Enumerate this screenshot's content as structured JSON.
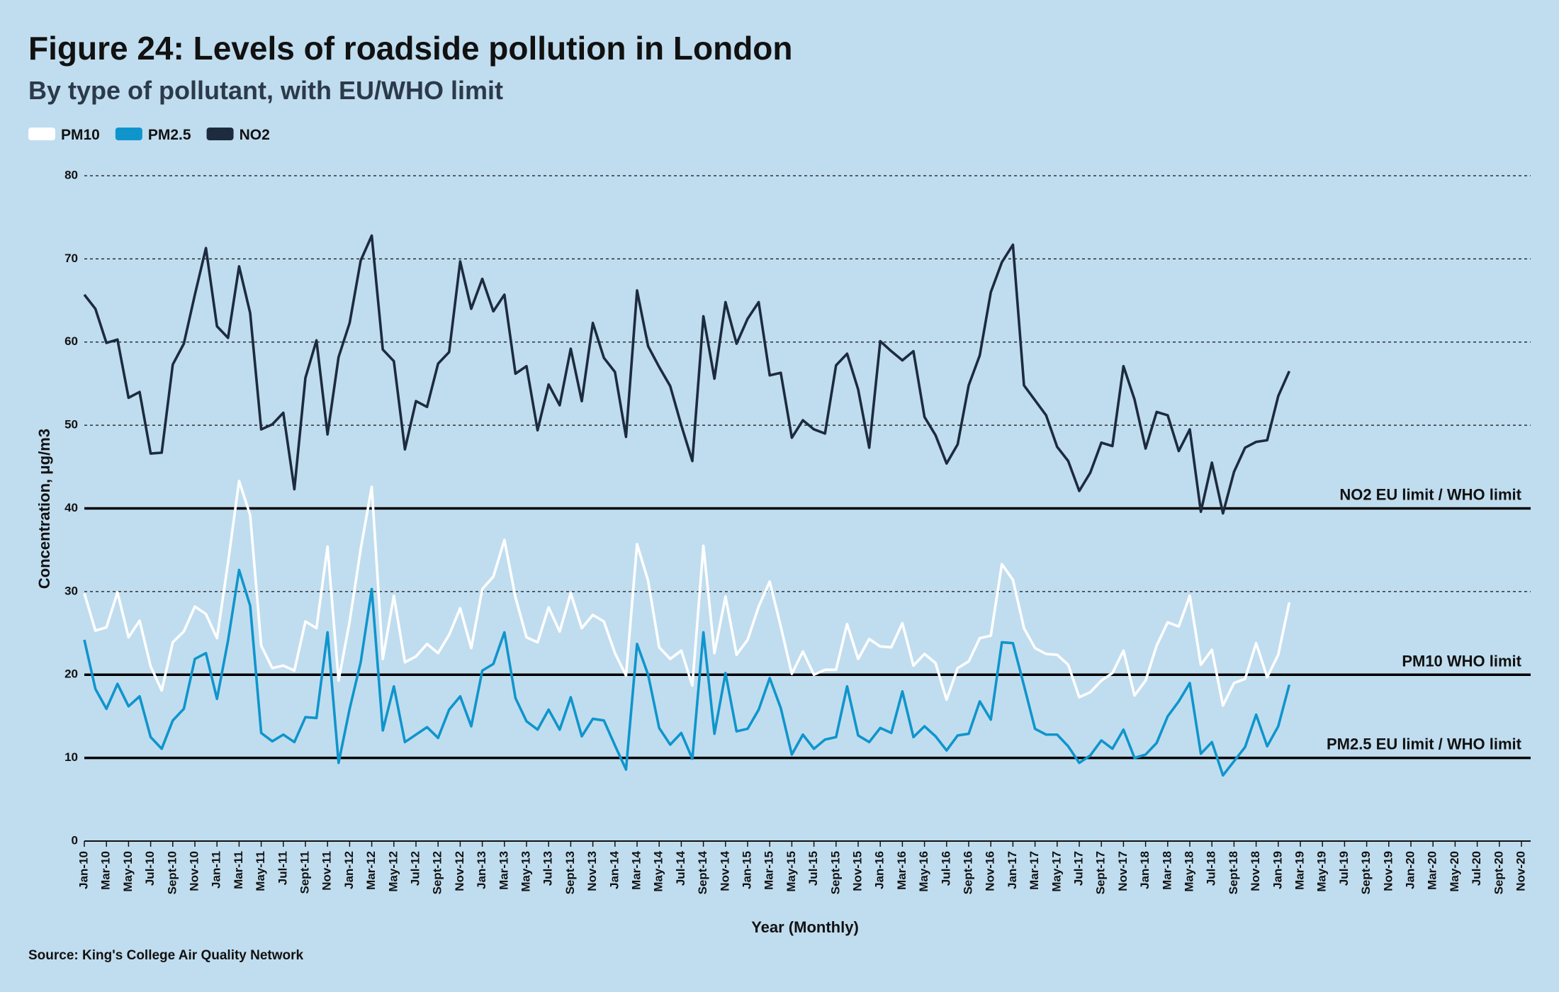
{
  "chart_data": {
    "type": "line",
    "title": "Figure 24: Levels of roadside pollution in London",
    "subtitle": "By type of pollutant, with EU/WHO limit",
    "y_label": "Concentration, μg/m3",
    "x_label": "Year (Monthly)",
    "source": "Source: King's College Air Quality Network",
    "ylim": [
      0,
      80
    ],
    "yticks": [
      0,
      10,
      20,
      30,
      40,
      50,
      60,
      70,
      80
    ],
    "grid": true,
    "legend": "top-left",
    "reference_lines": [
      {
        "value": 40,
        "label": "NO2 EU limit / WHO limit"
      },
      {
        "value": 20,
        "label": "PM10 WHO limit"
      },
      {
        "value": 10,
        "label": "PM2.5 EU limit / WHO limit"
      }
    ],
    "categories": [
      "Jan-10",
      null,
      "Mar-10",
      null,
      "May-10",
      null,
      "Jul-10",
      null,
      "Sept-10",
      null,
      "Nov-10",
      null,
      "Jan-11",
      null,
      "Mar-11",
      null,
      "May-11",
      null,
      "Jul-11",
      null,
      "Sept-11",
      null,
      "Nov-11",
      null,
      "Jan-12",
      null,
      "Mar-12",
      null,
      "May-12",
      null,
      "Jul-12",
      null,
      "Sept-12",
      null,
      "Nov-12",
      null,
      "Jan-13",
      null,
      "Mar-13",
      null,
      "May-13",
      null,
      "Jul-13",
      null,
      "Sept-13",
      null,
      "Nov-13",
      null,
      "Jan-14",
      null,
      "Mar-14",
      null,
      "May-14",
      null,
      "Jul-14",
      null,
      "Sept-14",
      null,
      "Nov-14",
      null,
      "Jan-15",
      null,
      "Mar-15",
      null,
      "May-15",
      null,
      "Jul-15",
      null,
      "Sept-15",
      null,
      "Nov-15",
      null,
      "Jan-16",
      null,
      "Mar-16",
      null,
      "May-16",
      null,
      "Jul-16",
      null,
      "Sept-16",
      null,
      "Nov-16",
      null,
      "Jan-17",
      null,
      "Mar-17",
      null,
      "May-17",
      null,
      "Jul-17",
      null,
      "Sept-17",
      null,
      "Nov-17",
      null,
      "Jan-18",
      null,
      "Mar-18",
      null,
      "May-18",
      null,
      "Jul-18",
      null,
      "Sept-18",
      null,
      "Nov-18",
      null,
      "Jan-19",
      null,
      "Mar-19",
      null,
      "May-19",
      null,
      "Jul-19",
      null,
      "Sept-19",
      null,
      "Nov-19",
      null,
      "Jan-20",
      null,
      "Mar-20",
      null,
      "May-20",
      null,
      "Jul-20",
      null,
      "Sept-20",
      null,
      "Nov-20"
    ],
    "series": [
      {
        "name": "PM10",
        "color": "#ffffff",
        "values": [
          29.8,
          25.3,
          25.7,
          29.9,
          24.5,
          26.5,
          21,
          18.1,
          23.9,
          25.2,
          28.2,
          27.3,
          24.4,
          33.5,
          43.3,
          39.2,
          23.5,
          20.8,
          21.1,
          20.5,
          26.4,
          25.6,
          35.4,
          19.3,
          26.4,
          35.1,
          42.6,
          21.9,
          29.5,
          21.5,
          22.2,
          23.7,
          22.6,
          24.8,
          28,
          23.2,
          30.3,
          31.8,
          36.2,
          29.3,
          24.5,
          23.9,
          28.1,
          25.2,
          29.8,
          25.6,
          27.2,
          26.4,
          22.6,
          19.9,
          35.7,
          31.3,
          23.3,
          21.9,
          22.9,
          18.7,
          35.5,
          22.6,
          29.4,
          22.4,
          24.2,
          28.2,
          31.2,
          25.8,
          20.1,
          22.8,
          20,
          20.6,
          20.6,
          26.1,
          21.9,
          24.3,
          23.4,
          23.3,
          26.2,
          21.1,
          22.5,
          21.4,
          17,
          20.8,
          21.6,
          24.4,
          24.7,
          33.3,
          31.4,
          25.6,
          23.2,
          22.5,
          22.4,
          21.2,
          17.3,
          17.9,
          19.3,
          20.2,
          22.9,
          17.5,
          19.3,
          23.5,
          26.3,
          25.8,
          29.5,
          21.2,
          23,
          16.3,
          19,
          19.5,
          23.8,
          19.7,
          22.4,
          28.7,
          null,
          null,
          null,
          null,
          null,
          null,
          null,
          null,
          null,
          null,
          null,
          null,
          null,
          null,
          null,
          null,
          null,
          null,
          null,
          null,
          null
        ]
      },
      {
        "name": "PM2.5",
        "color": "#0f95cc",
        "values": [
          24.2,
          18.3,
          15.9,
          18.9,
          16.2,
          17.4,
          12.5,
          11.1,
          14.5,
          15.9,
          21.9,
          22.6,
          17.1,
          24.1,
          32.6,
          28.3,
          13,
          12,
          12.8,
          11.9,
          14.9,
          14.8,
          25.1,
          9.4,
          15.9,
          21.5,
          30.3,
          13.3,
          18.6,
          11.9,
          12.8,
          13.7,
          12.4,
          15.8,
          17.4,
          13.8,
          20.5,
          21.3,
          25.1,
          17.2,
          14.4,
          13.4,
          15.8,
          13.4,
          17.3,
          12.6,
          14.7,
          14.5,
          11.5,
          8.6,
          23.7,
          20,
          13.6,
          11.6,
          13,
          9.9,
          25.1,
          12.9,
          20.2,
          13.2,
          13.5,
          15.8,
          19.6,
          16,
          10.4,
          12.8,
          11.1,
          12.2,
          12.5,
          18.6,
          12.7,
          11.9,
          13.6,
          13,
          18,
          12.5,
          13.8,
          12.6,
          10.9,
          12.7,
          12.9,
          16.8,
          14.6,
          23.9,
          23.8,
          18.7,
          13.5,
          12.8,
          12.8,
          11.4,
          9.4,
          10.3,
          12.1,
          11.1,
          13.4,
          10,
          10.4,
          11.8,
          15,
          16.8,
          19,
          10.5,
          11.9,
          7.9,
          9.6,
          11.3,
          15.2,
          11.4,
          13.8,
          18.8,
          null,
          null,
          null,
          null,
          null,
          null,
          null,
          null,
          null,
          null,
          null,
          null,
          null,
          null,
          null,
          null,
          null,
          null,
          null,
          null,
          null
        ]
      },
      {
        "name": "NO2",
        "color": "#1d2b3e",
        "values": [
          65.7,
          64,
          59.9,
          60.3,
          53.3,
          54,
          46.6,
          46.7,
          57.3,
          59.8,
          65.7,
          71.3,
          61.9,
          60.5,
          69.1,
          63.5,
          49.5,
          50.1,
          51.5,
          42.3,
          55.7,
          60.2,
          48.9,
          58.2,
          62.3,
          69.8,
          72.8,
          59.1,
          57.7,
          47.1,
          52.9,
          52.2,
          57.4,
          58.8,
          69.7,
          64,
          67.6,
          63.7,
          65.7,
          56.2,
          57.1,
          49.4,
          54.9,
          52.4,
          59.2,
          52.9,
          62.3,
          58.1,
          56.4,
          48.6,
          66.2,
          59.5,
          57,
          54.7,
          50,
          45.7,
          63.1,
          55.6,
          64.8,
          59.8,
          62.8,
          64.8,
          56,
          56.3,
          48.5,
          50.6,
          49.5,
          49,
          57.2,
          58.6,
          54.3,
          47.3,
          60.1,
          58.9,
          57.8,
          58.9,
          51,
          48.8,
          45.4,
          47.7,
          54.8,
          58.4,
          66,
          69.6,
          71.7,
          54.8,
          53,
          51.2,
          47.4,
          45.7,
          42.1,
          44.3,
          47.9,
          47.5,
          57.1,
          53.1,
          47.2,
          51.6,
          51.2,
          46.9,
          49.5,
          39.6,
          45.5,
          39.4,
          44.4,
          47.3,
          48,
          48.2,
          53.5,
          56.5,
          null,
          null,
          null,
          null,
          null,
          null,
          null,
          null,
          null,
          null,
          null,
          null,
          null,
          null,
          null,
          null,
          null,
          null,
          null,
          null,
          null
        ]
      }
    ]
  }
}
